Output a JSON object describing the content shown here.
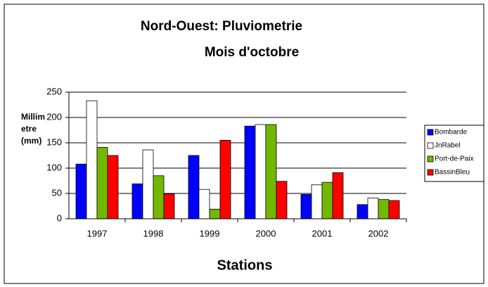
{
  "chart_data": {
    "type": "bar",
    "title": "Nord-Ouest: Pluviometrie",
    "subtitle": "Mois d'octobre",
    "x_label": "Stations",
    "y_label": "Millimetre (mm)",
    "categories": [
      "1997",
      "1998",
      "1999",
      "2000",
      "2001",
      "2002"
    ],
    "series": [
      {
        "name": "Bombarde",
        "color": "#0000ff",
        "values": [
          108,
          69,
          125,
          183,
          48,
          28
        ]
      },
      {
        "name": "JnRabel",
        "color": "#ffffff",
        "values": [
          233,
          136,
          58,
          186,
          67,
          41
        ]
      },
      {
        "name": "Port-de-Paix",
        "color": "#72b800",
        "values": [
          141,
          85,
          19,
          186,
          72,
          38
        ]
      },
      {
        "name": "BassinBleu",
        "color": "#ff0000",
        "values": [
          125,
          49,
          155,
          74,
          91,
          36
        ]
      }
    ],
    "ylim": [
      0,
      250
    ],
    "yticks": [
      0,
      50,
      100,
      150,
      200,
      250
    ],
    "grid": true,
    "legend": "right"
  }
}
